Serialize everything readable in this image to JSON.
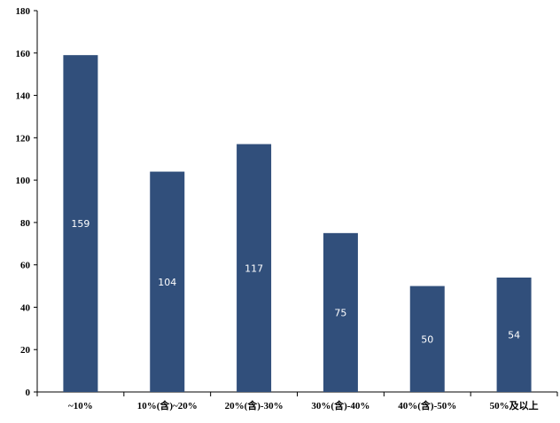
{
  "chart_data": {
    "type": "bar",
    "categories": [
      "~10%",
      "10%(含)~20%",
      "20%(含)-30%",
      "30%(含)-40%",
      "40%(含)-50%",
      "50%及以上"
    ],
    "values": [
      159,
      104,
      117,
      75,
      50,
      54
    ],
    "data_labels": [
      "159",
      "104",
      "117",
      "75",
      "50",
      "54"
    ],
    "title": "",
    "xlabel": "",
    "ylabel": "",
    "ylim": [
      0,
      180
    ],
    "yticks": [
      "0",
      "20",
      "40",
      "60",
      "80",
      "100",
      "120",
      "140",
      "160",
      "180"
    ],
    "grid": false,
    "bar_color": "#314f7b",
    "axis_color": "#000000",
    "label_color": "#ffffff"
  }
}
